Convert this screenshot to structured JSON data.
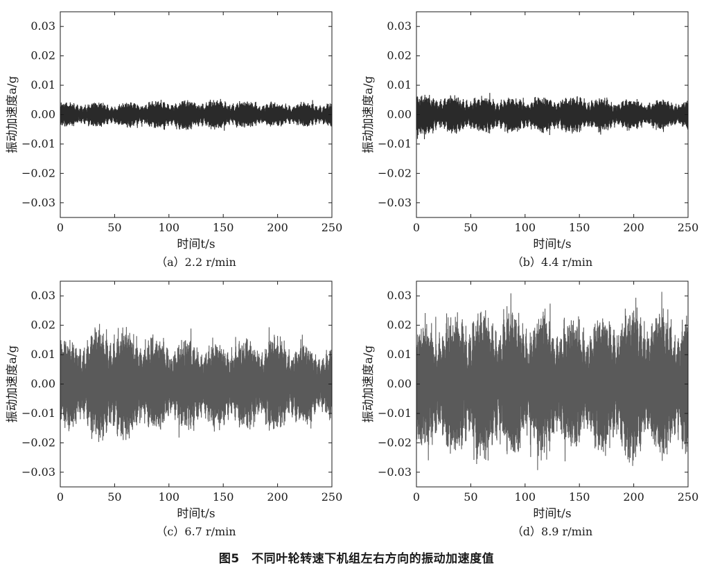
{
  "figure": {
    "caption": "图5　不同叶轮转速下机组左右方向的振动加速度值"
  },
  "chart_data": [
    {
      "type": "line",
      "caption": "（a）2.2 r/min",
      "xlabel": "时间t/s",
      "ylabel": "振动加速度a/g",
      "xlim": [
        0,
        250
      ],
      "ylim": [
        -0.035,
        0.035
      ],
      "xticks": [
        "0",
        "50",
        "100",
        "150",
        "200",
        "250"
      ],
      "yticks": [
        "0.03",
        "0.02",
        "0.01",
        "0.00",
        "−0.01",
        "−0.02",
        "−0.03"
      ],
      "amplitude_envelope": {
        "x": [
          0,
          50,
          100,
          150,
          200,
          250
        ],
        "peak": [
          0.004,
          0.004,
          0.005,
          0.005,
          0.004,
          0.004
        ]
      },
      "color": "#2a2a2a"
    },
    {
      "type": "line",
      "caption": "（b）4.4 r/min",
      "xlabel": "时间t/s",
      "ylabel": "振动加速度a/g",
      "xlim": [
        0,
        250
      ],
      "ylim": [
        -0.035,
        0.035
      ],
      "xticks": [
        "0",
        "50",
        "100",
        "150",
        "200",
        "250"
      ],
      "yticks": [
        "0.03",
        "0.02",
        "0.01",
        "0.00",
        "−0.01",
        "−0.02",
        "−0.03"
      ],
      "amplitude_envelope": {
        "x": [
          0,
          50,
          100,
          150,
          200,
          250
        ],
        "peak": [
          0.007,
          0.006,
          0.006,
          0.006,
          0.005,
          0.005
        ]
      },
      "color": "#2a2a2a"
    },
    {
      "type": "line",
      "caption": "（c）6.7 r/min",
      "xlabel": "时间t/s",
      "ylabel": "振动加速度a/g",
      "xlim": [
        0,
        250
      ],
      "ylim": [
        -0.035,
        0.035
      ],
      "xticks": [
        "0",
        "50",
        "100",
        "150",
        "200",
        "250"
      ],
      "yticks": [
        "0.03",
        "0.02",
        "0.01",
        "0.00",
        "−0.01",
        "−0.02",
        "−0.03"
      ],
      "amplitude_envelope": {
        "x": [
          0,
          50,
          100,
          150,
          200,
          250
        ],
        "peak": [
          0.014,
          0.02,
          0.015,
          0.015,
          0.016,
          0.012
        ]
      },
      "color": "#5a5a5a"
    },
    {
      "type": "line",
      "caption": "（d）8.9 r/min",
      "xlabel": "时间t/s",
      "ylabel": "振动加速度a/g",
      "xlim": [
        0,
        250
      ],
      "ylim": [
        -0.035,
        0.035
      ],
      "xticks": [
        "0",
        "50",
        "100",
        "150",
        "200",
        "250"
      ],
      "yticks": [
        "0.03",
        "0.02",
        "0.01",
        "0.00",
        "−0.01",
        "−0.02",
        "−0.03"
      ],
      "amplitude_envelope": {
        "x": [
          0,
          50,
          100,
          150,
          200,
          250
        ],
        "peak": [
          0.02,
          0.026,
          0.025,
          0.022,
          0.026,
          0.024
        ]
      },
      "color": "#5a5a5a"
    }
  ]
}
